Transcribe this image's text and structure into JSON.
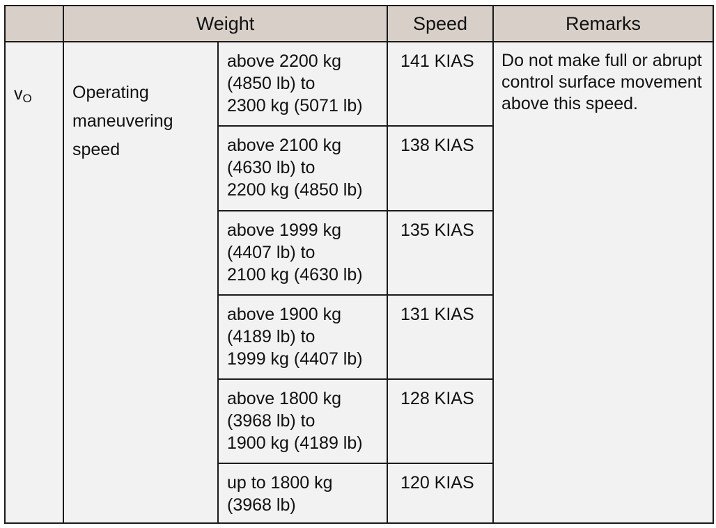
{
  "header": {
    "col_symbol": "",
    "col_weight": "Weight",
    "col_speed": "Speed",
    "col_remarks": "Remarks"
  },
  "symbol": {
    "main": "v",
    "subscript": "O"
  },
  "description": "Operating maneuvering speed",
  "remarks": "Do not make full or abrupt control surface movement above this speed.",
  "rows": [
    {
      "weight_lines": [
        "above 2200 kg",
        "(4850 lb) to",
        "2300 kg (5071 lb)"
      ],
      "speed": "141 KIAS"
    },
    {
      "weight_lines": [
        "above 2100 kg",
        "(4630 lb) to",
        "2200 kg (4850 lb)"
      ],
      "speed": "138 KIAS"
    },
    {
      "weight_lines": [
        "above 1999 kg",
        "(4407 lb) to",
        "2100 kg (4630 lb)"
      ],
      "speed": "135 KIAS"
    },
    {
      "weight_lines": [
        "above 1900 kg",
        "(4189 lb) to",
        "1999 kg (4407 lb)"
      ],
      "speed": "131 KIAS"
    },
    {
      "weight_lines": [
        "above 1800 kg",
        "(3968 lb) to",
        "1900 kg (4189 lb)"
      ],
      "speed": "128 KIAS"
    },
    {
      "weight_lines": [
        "up to 1800 kg",
        "(3968 lb)"
      ],
      "speed": "120 KIAS"
    }
  ]
}
